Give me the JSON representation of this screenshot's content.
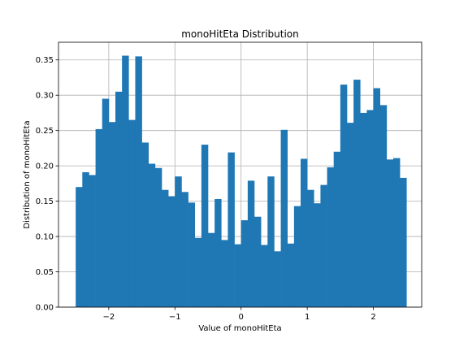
{
  "chart_data": {
    "type": "bar",
    "title": "monoHitEta Distribution",
    "xlabel": "Value of monoHitEta",
    "ylabel": "Distribution of monoHitEta",
    "grid": true,
    "legend": "none",
    "bar_color": "#1f77b4",
    "xlim": [
      -2.76,
      2.73
    ],
    "ylim": [
      0,
      0.375
    ],
    "xticks": [
      -2,
      -1,
      0,
      1,
      2
    ],
    "xtick_labels": [
      "−2",
      "−1",
      "0",
      "1",
      "2"
    ],
    "yticks": [
      0.0,
      0.05,
      0.1,
      0.15,
      0.2,
      0.25,
      0.3,
      0.35
    ],
    "ytick_labels": [
      "0.00",
      "0.05",
      "0.10",
      "0.15",
      "0.20",
      "0.25",
      "0.30",
      "0.35"
    ],
    "bin_edges": [
      -2.5,
      -2.4,
      -2.3,
      -2.2,
      -2.1,
      -2.0,
      -1.9,
      -1.8,
      -1.7,
      -1.6,
      -1.5,
      -1.4,
      -1.3,
      -1.2,
      -1.1,
      -1.0,
      -0.9,
      -0.8,
      -0.7,
      -0.6,
      -0.5,
      -0.4,
      -0.3,
      -0.2,
      -0.1,
      0.0,
      0.1,
      0.2,
      0.3,
      0.4,
      0.5,
      0.6,
      0.7,
      0.8,
      0.9,
      1.0,
      1.1,
      1.2,
      1.3,
      1.4,
      1.5,
      1.6,
      1.7,
      1.8,
      1.9,
      2.0,
      2.1,
      2.2,
      2.3,
      2.4,
      2.5
    ],
    "values": [
      0.17,
      0.191,
      0.187,
      0.252,
      0.295,
      0.262,
      0.305,
      0.356,
      0.265,
      0.355,
      0.233,
      0.203,
      0.197,
      0.166,
      0.157,
      0.185,
      0.163,
      0.148,
      0.098,
      0.23,
      0.105,
      0.153,
      0.095,
      0.219,
      0.089,
      0.123,
      0.179,
      0.128,
      0.088,
      0.185,
      0.079,
      0.251,
      0.09,
      0.143,
      0.21,
      0.166,
      0.147,
      0.173,
      0.198,
      0.22,
      0.315,
      0.261,
      0.322,
      0.275,
      0.279,
      0.31,
      0.286,
      0.209,
      0.211,
      0.183
    ]
  }
}
